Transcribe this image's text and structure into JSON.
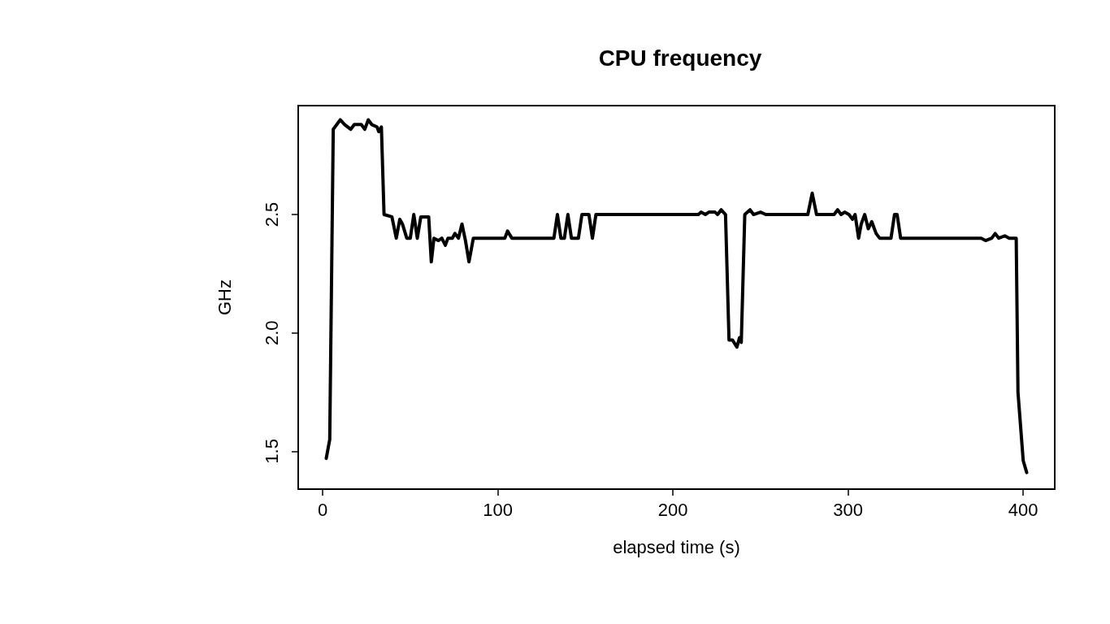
{
  "chart_data": {
    "type": "line",
    "title": "CPU frequency",
    "xlabel": "elapsed time (s)",
    "ylabel": "GHz",
    "x": [
      2,
      4,
      6,
      10,
      12.5,
      16,
      18,
      22,
      24,
      26,
      28,
      31,
      32,
      33.5,
      35,
      39.5,
      42,
      44,
      45.5,
      48,
      50,
      52,
      54,
      56,
      58.5,
      60.5,
      62,
      63.5,
      66,
      68,
      70,
      71.5,
      74,
      75.5,
      77.5,
      79.5,
      81.5,
      83.5,
      86,
      89,
      104,
      105.5,
      108,
      132,
      134,
      136,
      138,
      140,
      142,
      146,
      148,
      152,
      154,
      156,
      214.5,
      216,
      218.5,
      220.5,
      224,
      225.5,
      227.5,
      230,
      232,
      234,
      236.5,
      238,
      239,
      241,
      244,
      246,
      250,
      253,
      277,
      279.5,
      282,
      292,
      294,
      296,
      298,
      300.5,
      302.5,
      304,
      306,
      307.5,
      309.5,
      311.5,
      313.5,
      316,
      318,
      324.5,
      326.5,
      328,
      330,
      376,
      378.5,
      382,
      384,
      386,
      389.5,
      392,
      396,
      397,
      400,
      402
    ],
    "series": [
      {
        "color": "#000000",
        "values": [
          1.47,
          1.55,
          2.86,
          2.9,
          2.88,
          2.86,
          2.88,
          2.88,
          2.86,
          2.9,
          2.88,
          2.87,
          2.85,
          2.87,
          2.5,
          2.49,
          2.4,
          2.48,
          2.46,
          2.4,
          2.4,
          2.5,
          2.4,
          2.49,
          2.49,
          2.49,
          2.3,
          2.4,
          2.39,
          2.4,
          2.37,
          2.4,
          2.4,
          2.42,
          2.4,
          2.46,
          2.39,
          2.3,
          2.4,
          2.4,
          2.4,
          2.43,
          2.4,
          2.4,
          2.5,
          2.4,
          2.4,
          2.5,
          2.4,
          2.4,
          2.5,
          2.5,
          2.4,
          2.5,
          2.5,
          2.51,
          2.5,
          2.51,
          2.51,
          2.5,
          2.52,
          2.5,
          1.97,
          1.97,
          1.94,
          1.98,
          1.96,
          2.5,
          2.52,
          2.5,
          2.51,
          2.5,
          2.5,
          2.59,
          2.5,
          2.5,
          2.52,
          2.5,
          2.51,
          2.5,
          2.48,
          2.5,
          2.4,
          2.46,
          2.5,
          2.44,
          2.47,
          2.42,
          2.4,
          2.4,
          2.5,
          2.5,
          2.4,
          2.4,
          2.39,
          2.4,
          2.42,
          2.4,
          2.41,
          2.4,
          2.4,
          1.75,
          1.46,
          1.41
        ]
      }
    ],
    "xlim": [
      -14,
      418
    ],
    "ylim": [
      1.34,
      2.96
    ],
    "xticks": [
      0,
      100,
      200,
      300,
      400
    ],
    "yticks": [
      1.5,
      {
        "value": 2,
        "label": "2.0"
      },
      2.5
    ],
    "marker": "none",
    "line_style": "solid",
    "grid": false
  }
}
